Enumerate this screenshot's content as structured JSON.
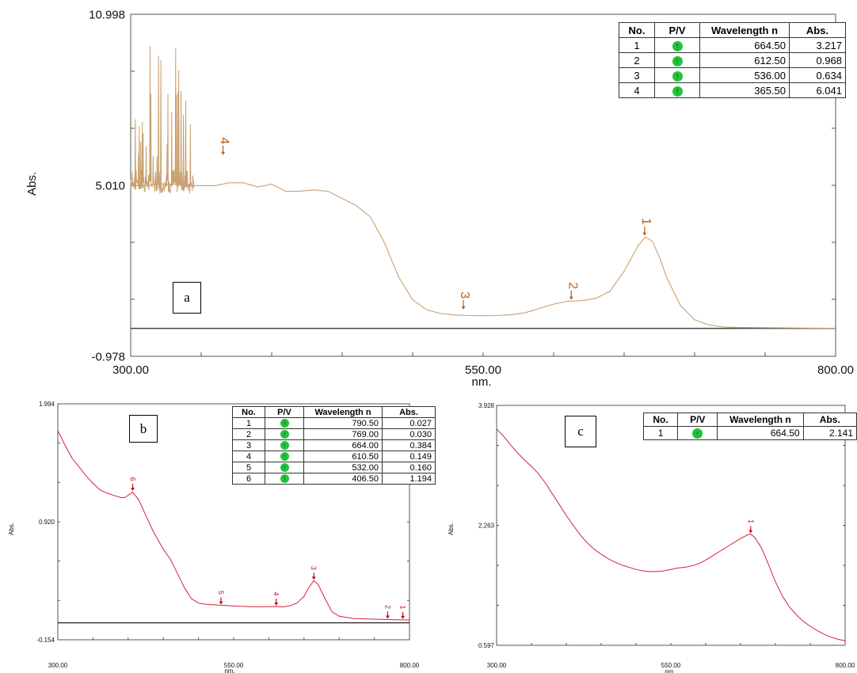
{
  "colors": {
    "panel_a_trace": "#c8a070",
    "panel_bc_trace": "#d8203a",
    "peak_marker_a": "#b8601a",
    "peak_marker_bc": "#c01020",
    "pv_green": "#22c33a"
  },
  "peak_table_headers": [
    "No.",
    "P/V",
    "Wavelength n",
    "Abs."
  ],
  "pv_icon": "peak-icon",
  "pv_symbol": "↑",
  "chart_data": [
    {
      "id": "a",
      "type": "line",
      "panel_label": "a",
      "ylabel": "Abs.",
      "xlabel": "nm.",
      "xlim": [
        300.0,
        800.0
      ],
      "ylim": [
        -0.978,
        10.998
      ],
      "x_tick_labels": [
        "300.00",
        "550.00",
        "800.00"
      ],
      "y_tick_labels": [
        "10.998",
        "5.010",
        "-0.978"
      ],
      "baseline": 0.0,
      "noise_region": {
        "x": [
          300,
          345
        ],
        "y_low": 4.5,
        "y_high": 10.3
      },
      "series": [
        {
          "x": [
            300,
            310,
            320,
            330,
            340,
            350,
            360,
            370,
            380,
            390,
            400,
            410,
            420,
            430,
            440,
            450,
            460,
            470,
            480,
            490,
            500,
            510,
            520,
            530,
            540,
            550,
            560,
            570,
            580,
            590,
            600,
            610,
            620,
            630,
            640,
            650,
            660,
            665,
            670,
            675,
            680,
            690,
            700,
            710,
            720,
            730,
            800
          ],
          "y": [
            5.0,
            5.0,
            5.05,
            5.05,
            5.0,
            5.0,
            5.0,
            5.1,
            5.1,
            4.95,
            5.05,
            4.8,
            4.8,
            4.85,
            4.8,
            4.55,
            4.3,
            3.9,
            3.0,
            1.8,
            1.0,
            0.65,
            0.52,
            0.47,
            0.45,
            0.44,
            0.45,
            0.48,
            0.55,
            0.7,
            0.85,
            0.95,
            0.97,
            1.05,
            1.3,
            2.0,
            2.9,
            3.2,
            3.05,
            2.5,
            1.8,
            0.8,
            0.3,
            0.12,
            0.05,
            0.03,
            0.0
          ]
        }
      ],
      "peaks": [
        {
          "no": "1",
          "wavelength": "664.50",
          "abs": "3.217",
          "x": 664.5,
          "y": 3.217
        },
        {
          "no": "2",
          "wavelength": "612.50",
          "abs": "0.968",
          "x": 612.5,
          "y": 0.968
        },
        {
          "no": "3",
          "wavelength": "536.00",
          "abs": "0.634",
          "x": 536.0,
          "y": 0.634
        },
        {
          "no": "4",
          "wavelength": "365.50",
          "abs": "6.041",
          "x": 365.5,
          "y": 6.041
        }
      ]
    },
    {
      "id": "b",
      "type": "line",
      "panel_label": "b",
      "ylabel": "Abs.",
      "xlabel": "nm.",
      "xlim": [
        300.0,
        800.0
      ],
      "ylim": [
        -0.154,
        1.994
      ],
      "x_tick_labels": [
        "300.00",
        "550.00",
        "800.00"
      ],
      "y_tick_labels": [
        "1.994",
        "0.920",
        "-0.154"
      ],
      "baseline": 0.0,
      "series": [
        {
          "x": [
            300,
            310,
            320,
            330,
            340,
            350,
            360,
            370,
            380,
            390,
            395,
            400,
            406.5,
            415,
            425,
            435,
            450,
            460,
            470,
            480,
            490,
            500,
            510,
            520,
            532,
            545,
            560,
            575,
            590,
            605,
            610.5,
            620,
            630,
            640,
            650,
            655,
            660,
            664,
            670,
            680,
            690,
            700,
            720,
            740,
            760,
            769,
            780,
            790.5,
            800
          ],
          "y": [
            1.75,
            1.62,
            1.5,
            1.42,
            1.34,
            1.27,
            1.21,
            1.18,
            1.16,
            1.14,
            1.14,
            1.16,
            1.19,
            1.12,
            0.98,
            0.84,
            0.67,
            0.58,
            0.45,
            0.32,
            0.22,
            0.18,
            0.17,
            0.165,
            0.16,
            0.155,
            0.15,
            0.147,
            0.146,
            0.148,
            0.149,
            0.145,
            0.155,
            0.18,
            0.24,
            0.3,
            0.35,
            0.384,
            0.35,
            0.22,
            0.1,
            0.06,
            0.04,
            0.035,
            0.032,
            0.03,
            0.028,
            0.027,
            0.026
          ]
        }
      ],
      "peaks": [
        {
          "no": "1",
          "wavelength": "790.50",
          "abs": "0.027",
          "x": 790.5,
          "y": 0.027
        },
        {
          "no": "2",
          "wavelength": "769.00",
          "abs": "0.030",
          "x": 769.0,
          "y": 0.03
        },
        {
          "no": "3",
          "wavelength": "664.00",
          "abs": "0.384",
          "x": 664.0,
          "y": 0.384
        },
        {
          "no": "4",
          "wavelength": "610.50",
          "abs": "0.149",
          "x": 610.5,
          "y": 0.149
        },
        {
          "no": "5",
          "wavelength": "532.00",
          "abs": "0.160",
          "x": 532.0,
          "y": 0.16
        },
        {
          "no": "6",
          "wavelength": "406.50",
          "abs": "1.194",
          "x": 406.5,
          "y": 1.194
        }
      ]
    },
    {
      "id": "c",
      "type": "line",
      "panel_label": "c",
      "ylabel": "Abs.",
      "xlabel": "nm.",
      "xlim": [
        300.0,
        800.0
      ],
      "ylim": [
        0.597,
        3.928
      ],
      "x_tick_labels": [
        "300.00",
        "550.00",
        "800.00"
      ],
      "y_tick_labels": [
        "3.928",
        "2.263",
        "0.597"
      ],
      "series": [
        {
          "x": [
            300,
            310,
            320,
            330,
            340,
            350,
            360,
            370,
            380,
            390,
            400,
            410,
            420,
            430,
            440,
            450,
            460,
            470,
            480,
            490,
            500,
            510,
            520,
            530,
            540,
            550,
            560,
            570,
            580,
            590,
            600,
            610,
            620,
            630,
            640,
            650,
            660,
            664.5,
            670,
            680,
            690,
            700,
            710,
            720,
            730,
            740,
            750,
            760,
            770,
            780,
            790,
            800
          ],
          "y": [
            3.6,
            3.5,
            3.38,
            3.27,
            3.17,
            3.08,
            2.98,
            2.85,
            2.7,
            2.55,
            2.4,
            2.26,
            2.13,
            2.02,
            1.93,
            1.86,
            1.8,
            1.75,
            1.71,
            1.68,
            1.65,
            1.63,
            1.62,
            1.62,
            1.63,
            1.65,
            1.67,
            1.68,
            1.7,
            1.73,
            1.78,
            1.84,
            1.9,
            1.96,
            2.02,
            2.08,
            2.13,
            2.141,
            2.1,
            1.95,
            1.72,
            1.48,
            1.28,
            1.13,
            1.02,
            0.93,
            0.86,
            0.8,
            0.75,
            0.71,
            0.68,
            0.66
          ]
        }
      ],
      "peaks": [
        {
          "no": "1",
          "wavelength": "664.50",
          "abs": "2.141",
          "x": 664.5,
          "y": 2.141
        }
      ]
    }
  ]
}
